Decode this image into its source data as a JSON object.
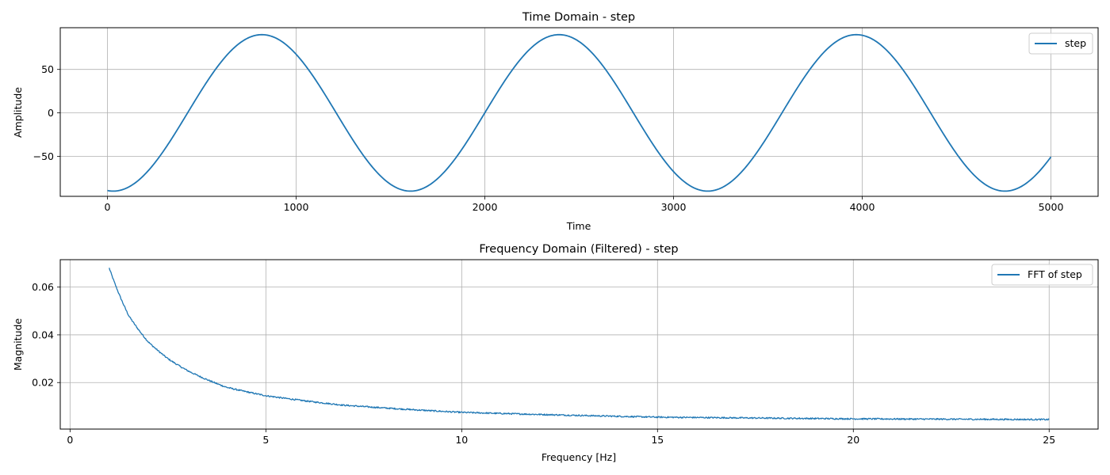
{
  "chart_data": [
    {
      "type": "line",
      "title": "Time Domain - step",
      "xlabel": "Time",
      "ylabel": "Amplitude",
      "xlim": [
        -250,
        5250
      ],
      "ylim": [
        -96,
        98
      ],
      "grid": true,
      "legend_placement": "top-right",
      "x_ticks": [
        0,
        1000,
        2000,
        3000,
        4000,
        5000
      ],
      "x_tick_labels": [
        "0",
        "1000",
        "2000",
        "3000",
        "4000",
        "5000"
      ],
      "y_ticks": [
        -50,
        0,
        50
      ],
      "y_tick_labels": [
        "−50",
        "0",
        "50"
      ],
      "series": [
        {
          "name": "step",
          "color": "#1f77b4",
          "x_range": [
            0,
            5000
          ],
          "shape": "sinusoid",
          "amplitude": 90,
          "period": 1575,
          "phase_offset": 31,
          "start_value": -89.6,
          "end_value": -46
        }
      ]
    },
    {
      "type": "line",
      "title": "Frequency Domain (Filtered) - step",
      "xlabel": "Frequency [Hz]",
      "ylabel": "Magnitude",
      "xlim": [
        -0.25,
        26.25
      ],
      "ylim": [
        0.0005,
        0.0715
      ],
      "grid": true,
      "legend_placement": "top-right",
      "x_ticks": [
        0,
        5,
        10,
        15,
        20,
        25
      ],
      "x_tick_labels": [
        "0",
        "5",
        "10",
        "15",
        "20",
        "25"
      ],
      "y_ticks": [
        0.02,
        0.04,
        0.06
      ],
      "y_tick_labels": [
        "0.02",
        "0.04",
        "0.06"
      ],
      "series": [
        {
          "name": "FFT of step",
          "color": "#1f77b4",
          "x_range": [
            1,
            25
          ],
          "shape": "decay",
          "samples": {
            "x": [
              1,
              1.5,
              2,
              2.5,
              3,
              4,
              5,
              7,
              10,
              15,
              20,
              25
            ],
            "y": [
              0.068,
              0.048,
              0.037,
              0.03,
              0.025,
              0.018,
              0.0145,
              0.0105,
              0.0075,
              0.0055,
              0.0048,
              0.0045
            ]
          }
        }
      ]
    }
  ]
}
